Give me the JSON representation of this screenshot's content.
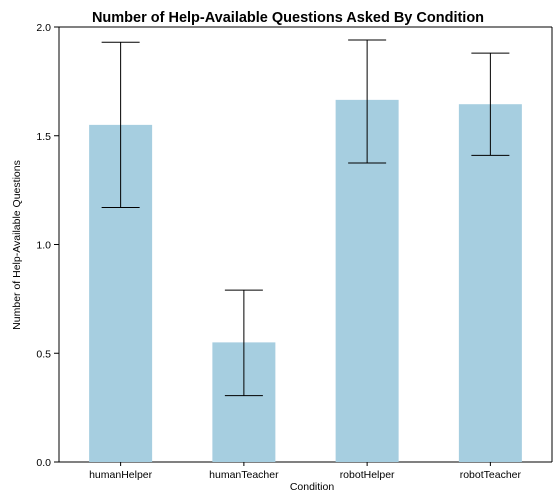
{
  "chart_data": {
    "type": "bar",
    "title": "Number of Help-Available Questions Asked By Condition",
    "xlabel": "Condition",
    "ylabel": "Number of Help-Available Questions",
    "categories": [
      "humanHelper",
      "humanTeacher",
      "robotHelper",
      "robotTeacher"
    ],
    "values": [
      1.55,
      0.55,
      1.665,
      1.645
    ],
    "error_low": [
      1.17,
      0.305,
      1.375,
      1.41
    ],
    "error_high": [
      1.93,
      0.79,
      1.94,
      1.88
    ],
    "ylim": [
      0,
      2.0
    ],
    "yticks": [
      "0.0",
      "0.5",
      "1.0",
      "1.5",
      "2.0"
    ],
    "bar_color": "#a6cee0",
    "errorbar_color": "#000000",
    "grid": false,
    "legend": "none"
  }
}
